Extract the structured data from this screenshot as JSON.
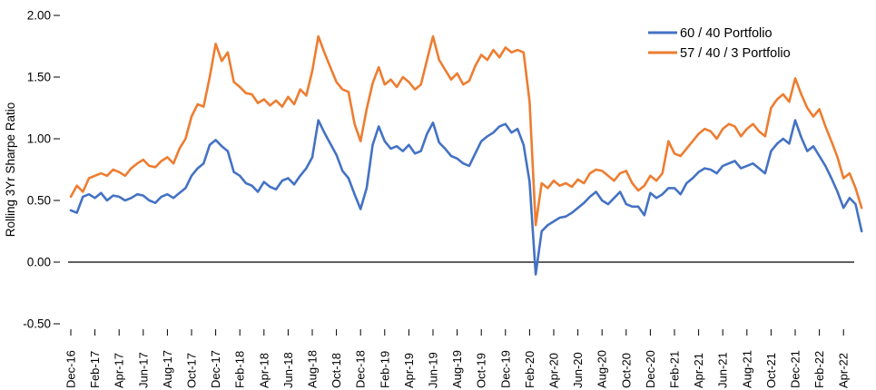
{
  "chart_data": {
    "type": "line",
    "title": "",
    "y_axis": {
      "label": "Rolling 3Yr Sharpe Ratio",
      "min": -0.5,
      "max": 2.0,
      "tick_step": 0.5,
      "tick_values": [
        2.0,
        1.5,
        1.0,
        0.5,
        0.0,
        -0.5
      ],
      "tick_labels": [
        "2.00",
        "1.50",
        "1.00",
        "0.50",
        "0.00",
        "-0.50"
      ]
    },
    "x_axis": {
      "tick_labels": [
        "Dec-16",
        "Feb-17",
        "Apr-17",
        "Jun-17",
        "Aug-17",
        "Oct-17",
        "Dec-17",
        "Feb-18",
        "Apr-18",
        "Jun-18",
        "Aug-18",
        "Oct-18",
        "Dec-18",
        "Feb-19",
        "Apr-19",
        "Jun-19",
        "Aug-19",
        "Oct-19",
        "Dec-19",
        "Feb-20",
        "Apr-20",
        "Jun-20",
        "Aug-20",
        "Oct-20",
        "Dec-20",
        "Feb-21",
        "Apr-21",
        "Jun-21",
        "Aug-21",
        "Oct-21",
        "Dec-21",
        "Feb-22",
        "Apr-22"
      ],
      "months_between_ticks": 2,
      "label_rotation_deg": -90
    },
    "grid": false,
    "zero_line": true,
    "legend_position": "top-right",
    "sampling": {
      "start_month": 0,
      "step_months": 0.5,
      "note": "months measured from Dec-16"
    },
    "series": [
      {
        "name": "60 / 40 Portfolio",
        "color": "#4472C4",
        "values": [
          0.42,
          0.4,
          0.53,
          0.55,
          0.52,
          0.56,
          0.5,
          0.54,
          0.53,
          0.5,
          0.52,
          0.55,
          0.54,
          0.5,
          0.48,
          0.53,
          0.55,
          0.52,
          0.56,
          0.6,
          0.7,
          0.76,
          0.8,
          0.95,
          0.99,
          0.94,
          0.9,
          0.73,
          0.7,
          0.64,
          0.62,
          0.57,
          0.65,
          0.61,
          0.59,
          0.66,
          0.68,
          0.63,
          0.7,
          0.76,
          0.85,
          1.15,
          1.05,
          0.96,
          0.87,
          0.74,
          0.68,
          0.55,
          0.43,
          0.6,
          0.95,
          1.1,
          0.98,
          0.92,
          0.94,
          0.9,
          0.95,
          0.88,
          0.9,
          1.04,
          1.13,
          0.97,
          0.92,
          0.86,
          0.84,
          0.8,
          0.78,
          0.88,
          0.98,
          1.02,
          1.05,
          1.1,
          1.12,
          1.05,
          1.08,
          0.95,
          0.65,
          -0.1,
          0.25,
          0.3,
          0.33,
          0.36,
          0.37,
          0.4,
          0.44,
          0.48,
          0.53,
          0.57,
          0.5,
          0.47,
          0.52,
          0.57,
          0.47,
          0.45,
          0.45,
          0.38,
          0.56,
          0.52,
          0.55,
          0.6,
          0.6,
          0.55,
          0.64,
          0.68,
          0.73,
          0.76,
          0.75,
          0.72,
          0.78,
          0.8,
          0.82,
          0.76,
          0.78,
          0.8,
          0.76,
          0.72,
          0.9,
          0.96,
          1.0,
          0.96,
          1.15,
          1.01,
          0.9,
          0.94,
          0.86,
          0.78,
          0.68,
          0.57,
          0.44,
          0.52,
          0.47,
          0.25
        ]
      },
      {
        "name": "57 / 40 / 3 Portfolio",
        "color": "#ED7D31",
        "values": [
          0.53,
          0.62,
          0.57,
          0.68,
          0.7,
          0.72,
          0.7,
          0.75,
          0.73,
          0.7,
          0.76,
          0.8,
          0.83,
          0.78,
          0.77,
          0.82,
          0.85,
          0.8,
          0.92,
          1.0,
          1.18,
          1.28,
          1.26,
          1.5,
          1.77,
          1.63,
          1.7,
          1.46,
          1.42,
          1.37,
          1.36,
          1.29,
          1.32,
          1.27,
          1.31,
          1.26,
          1.34,
          1.28,
          1.4,
          1.35,
          1.55,
          1.83,
          1.7,
          1.58,
          1.46,
          1.4,
          1.38,
          1.12,
          0.98,
          1.24,
          1.45,
          1.58,
          1.44,
          1.48,
          1.42,
          1.5,
          1.46,
          1.4,
          1.44,
          1.64,
          1.83,
          1.64,
          1.56,
          1.48,
          1.53,
          1.44,
          1.47,
          1.59,
          1.68,
          1.64,
          1.72,
          1.66,
          1.74,
          1.7,
          1.72,
          1.7,
          1.3,
          0.3,
          0.64,
          0.6,
          0.66,
          0.62,
          0.64,
          0.61,
          0.67,
          0.64,
          0.72,
          0.75,
          0.74,
          0.7,
          0.66,
          0.72,
          0.74,
          0.64,
          0.58,
          0.62,
          0.7,
          0.66,
          0.72,
          0.98,
          0.88,
          0.86,
          0.92,
          0.98,
          1.04,
          1.08,
          1.06,
          1.0,
          1.08,
          1.12,
          1.1,
          1.02,
          1.08,
          1.12,
          1.06,
          1.02,
          1.25,
          1.32,
          1.36,
          1.3,
          1.49,
          1.36,
          1.25,
          1.18,
          1.24,
          1.1,
          0.98,
          0.85,
          0.68,
          0.72,
          0.6,
          0.44
        ]
      }
    ]
  }
}
